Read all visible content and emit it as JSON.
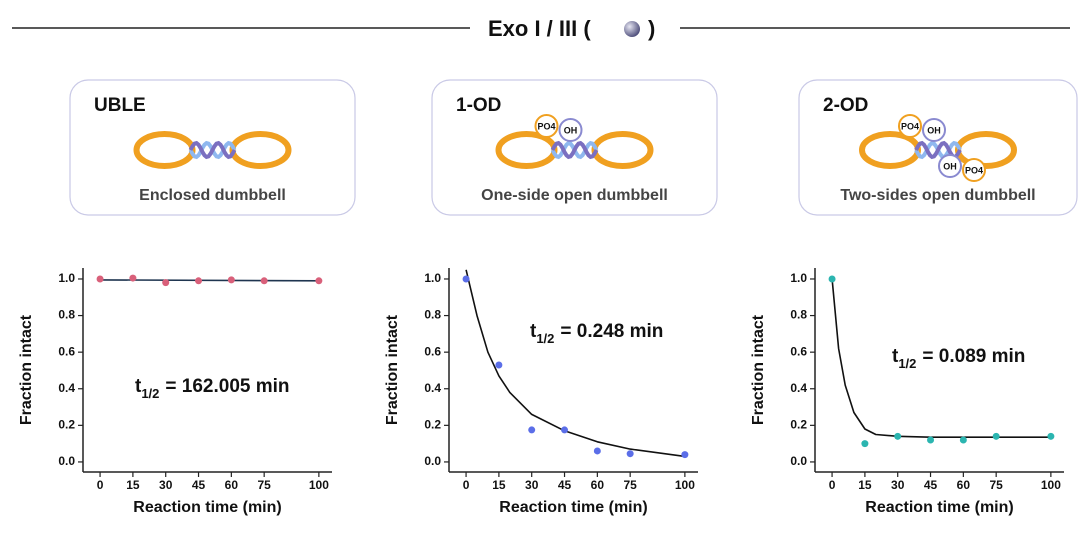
{
  "header": {
    "title": "Exo I / III (",
    "title_end": ")"
  },
  "tags": [
    "PO4",
    "OH"
  ],
  "panels": [
    {
      "label": "UBLE",
      "caption": "Enclosed dumbbell"
    },
    {
      "label": "1-OD",
      "caption": "One-side open dumbbell"
    },
    {
      "label": "2-OD",
      "caption": "Two-sides open dumbbell"
    }
  ],
  "chart_data": [
    {
      "type": "scatter",
      "x": [
        0,
        15,
        30,
        45,
        60,
        75,
        100
      ],
      "values": [
        1.0,
        1.005,
        0.98,
        0.99,
        0.995,
        0.99,
        0.99
      ],
      "color": "#d9607a",
      "fit": {
        "x": [
          0,
          100
        ],
        "values": [
          0.995,
          0.99
        ],
        "color": "#1f3550"
      },
      "annotation": {
        "t": "t",
        "sub": "1/2",
        "text": "= 162.005 min"
      },
      "xlabel": "Reaction time (min)",
      "ylabel": "Fraction intact",
      "xlim": [
        -7.8,
        106
      ],
      "ylim": [
        -0.055,
        1.06
      ],
      "xticks": [
        0,
        15,
        30,
        45,
        60,
        75,
        100
      ],
      "yticks": [
        {
          "value": 0,
          "label": "0.0"
        },
        0.2,
        0.4,
        0.6,
        0.8,
        {
          "value": 1,
          "label": "1.0"
        }
      ]
    },
    {
      "type": "scatter",
      "x": [
        0,
        15,
        30,
        45,
        60,
        75,
        100
      ],
      "values": [
        1.0,
        0.53,
        0.175,
        0.175,
        0.06,
        0.045,
        0.04
      ],
      "color": "#5b6ee8",
      "fit": {
        "x": [
          0,
          5,
          10,
          15,
          20,
          30,
          45,
          60,
          75,
          100
        ],
        "values": [
          1.05,
          0.8,
          0.6,
          0.47,
          0.38,
          0.26,
          0.17,
          0.11,
          0.07,
          0.03
        ],
        "color": "#111111"
      },
      "annotation": {
        "t": "t",
        "sub": "1/2",
        "text": "= 0.248 min"
      },
      "xlabel": "Reaction time (min)",
      "ylabel": "Fraction intact",
      "xlim": [
        -7.8,
        106
      ],
      "ylim": [
        -0.055,
        1.06
      ],
      "xticks": [
        0,
        15,
        30,
        45,
        60,
        75,
        100
      ],
      "yticks": [
        {
          "value": 0,
          "label": "0.0"
        },
        0.2,
        0.4,
        0.6,
        0.8,
        {
          "value": 1,
          "label": "1.0"
        }
      ]
    },
    {
      "type": "scatter",
      "x": [
        0,
        15,
        30,
        45,
        60,
        75,
        100
      ],
      "values": [
        1.0,
        0.1,
        0.14,
        0.12,
        0.12,
        0.14,
        0.14
      ],
      "color": "#2bb5b0",
      "fit": {
        "x": [
          0,
          3,
          6,
          10,
          15,
          20,
          30,
          45,
          60,
          100
        ],
        "values": [
          1.0,
          0.62,
          0.42,
          0.27,
          0.18,
          0.15,
          0.14,
          0.135,
          0.135,
          0.135
        ],
        "color": "#111111"
      },
      "annotation": {
        "t": "t",
        "sub": "1/2",
        "text": "= 0.089 min"
      },
      "xlabel": "Reaction time (min)",
      "ylabel": "Fraction intact",
      "xlim": [
        -7.8,
        106
      ],
      "ylim": [
        -0.055,
        1.06
      ],
      "xticks": [
        0,
        15,
        30,
        45,
        60,
        75,
        100
      ],
      "yticks": [
        {
          "value": 0,
          "label": "0.0"
        },
        0.2,
        0.4,
        0.6,
        0.8,
        {
          "value": 1,
          "label": "1.0"
        }
      ]
    }
  ]
}
